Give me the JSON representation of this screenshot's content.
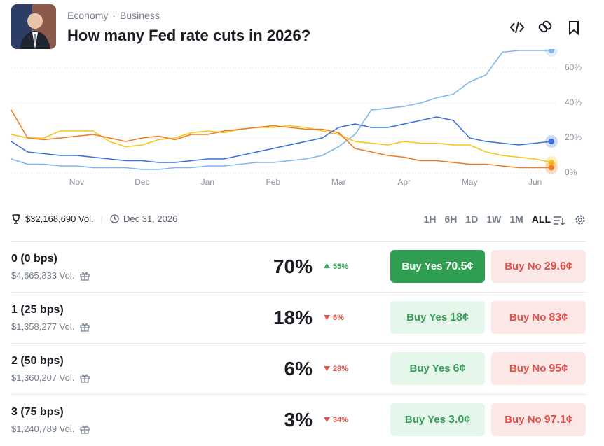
{
  "header": {
    "breadcrumbs": [
      "Economy",
      "Business"
    ],
    "title": "How many Fed rate cuts in 2026?"
  },
  "chart_data": {
    "type": "line",
    "categories": [
      null,
      null,
      null,
      null,
      "Nov",
      null,
      null,
      null,
      "Dec",
      null,
      null,
      null,
      "Jan",
      null,
      null,
      null,
      "Feb",
      null,
      null,
      null,
      "Mar",
      null,
      null,
      null,
      "Apr",
      null,
      null,
      null,
      "May",
      null,
      null,
      null,
      "Jun",
      null
    ],
    "series": [
      {
        "color": "#7fb6ec",
        "values": [
          8,
          5,
          5,
          4,
          4,
          3,
          3,
          3,
          2,
          2,
          3,
          3,
          4,
          4,
          5,
          6,
          6,
          7,
          8,
          10,
          15,
          22,
          36,
          37,
          38,
          40,
          43,
          45,
          52,
          56,
          69,
          70,
          70,
          70
        ]
      },
      {
        "color": "#f5c518",
        "values": [
          22,
          20,
          20,
          24,
          24,
          24,
          18,
          15,
          16,
          19,
          20,
          23,
          24,
          23,
          25,
          26,
          26,
          27,
          26,
          24,
          22,
          18,
          17,
          16,
          18,
          17,
          17,
          16,
          16,
          12,
          10,
          9,
          8,
          6
        ]
      },
      {
        "color": "#f07c1f",
        "values": [
          36,
          20,
          19,
          20,
          21,
          22,
          20,
          18,
          20,
          21,
          19,
          22,
          22,
          24,
          25,
          26,
          27,
          26,
          25,
          25,
          23,
          14,
          12,
          10,
          9,
          7,
          7,
          6,
          5,
          5,
          4,
          3,
          3,
          3
        ]
      },
      {
        "color": "#3b6fe0",
        "values": [
          18,
          12,
          11,
          10,
          10,
          9,
          8,
          7,
          7,
          6,
          6,
          7,
          8,
          8,
          10,
          12,
          14,
          16,
          18,
          20,
          26,
          28,
          26,
          26,
          28,
          30,
          32,
          30,
          20,
          18,
          17,
          16,
          17,
          18
        ]
      }
    ],
    "ylim": [
      -2,
      70
    ],
    "yticks": [
      {
        "value": 0,
        "label": "0%"
      },
      {
        "value": 20,
        "label": "20%"
      },
      {
        "value": 40,
        "label": "40%"
      },
      {
        "value": 60,
        "label": "60%"
      }
    ],
    "grid": true
  },
  "stats": {
    "volume": "$32,168,690 Vol.",
    "end_date": "Dec 31, 2026"
  },
  "time_ranges": [
    "1H",
    "6H",
    "1D",
    "1W",
    "1M",
    "ALL"
  ],
  "outcomes": [
    {
      "name": "0 (0 bps)",
      "volume": "$4,665,833 Vol.",
      "chance": "70%",
      "change": "55%",
      "trend": "up",
      "buy_yes": "Buy Yes",
      "yes_price": "70.5¢",
      "buy_no": "Buy No",
      "no_price": "29.6¢"
    },
    {
      "name": "1 (25 bps)",
      "volume": "$1,358,277 Vol.",
      "chance": "18%",
      "change": "6%",
      "trend": "down",
      "buy_yes": "Buy Yes",
      "yes_price": "18¢",
      "buy_no": "Buy No",
      "no_price": "83¢"
    },
    {
      "name": "2 (50 bps)",
      "volume": "$1,360,207 Vol.",
      "chance": "6%",
      "change": "28%",
      "trend": "down",
      "buy_yes": "Buy Yes",
      "yes_price": "6¢",
      "buy_no": "Buy No",
      "no_price": "95¢"
    },
    {
      "name": "3 (75 bps)",
      "volume": "$1,240,789 Vol.",
      "chance": "3%",
      "change": "34%",
      "trend": "down",
      "buy_yes": "Buy Yes",
      "yes_price": "3.0¢",
      "buy_no": "Buy No",
      "no_price": "97.1¢"
    }
  ]
}
